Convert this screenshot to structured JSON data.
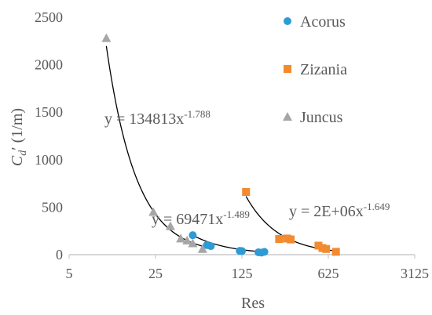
{
  "chart_data": {
    "type": "scatter",
    "title": "",
    "xlabel": "Res",
    "ylabel_main": "C",
    "ylabel_sub": "d",
    "ylabel_rest": "′ (1/m)",
    "x_scale": "log5",
    "xlim": [
      5,
      3125
    ],
    "ylim": [
      0,
      2500
    ],
    "x_ticks": [
      5,
      25,
      125,
      625,
      3125
    ],
    "x_tick_labels": [
      "5",
      "25",
      "125",
      "625",
      "3125"
    ],
    "y_ticks": [
      0,
      500,
      1000,
      1500,
      2000,
      2500
    ],
    "y_tick_labels": [
      "0",
      "500",
      "1000",
      "1500",
      "2000",
      "2500"
    ],
    "legend_position": "right",
    "series": [
      {
        "name": "Acorus",
        "marker": "circle",
        "color": "#2E9BD6",
        "x": [
          50,
          65,
          70,
          120,
          125,
          170,
          180,
          190
        ],
        "y": [
          205,
          100,
          90,
          40,
          38,
          25,
          22,
          30
        ]
      },
      {
        "name": "Zizania",
        "marker": "square",
        "color": "#F28A2F",
        "x": [
          135,
          250,
          290,
          310,
          520,
          560,
          600,
          720
        ],
        "y": [
          660,
          165,
          170,
          160,
          95,
          70,
          60,
          30
        ]
      },
      {
        "name": "Juncus",
        "marker": "triangle",
        "color": "#A6A6A6",
        "x": [
          10,
          24,
          33,
          40,
          45,
          50,
          60
        ],
        "y": [
          2280,
          450,
          300,
          170,
          150,
          120,
          60
        ]
      }
    ],
    "trendlines": [
      {
        "series": "Juncus",
        "coef": 134813,
        "exp": -1.788,
        "x_range": [
          10,
          61
        ],
        "label": "y = 134813x",
        "exp_label": "-1.788"
      },
      {
        "series": "Acorus",
        "coef": 69471,
        "exp": -1.489,
        "x_range": [
          50,
          190
        ],
        "label": "y = 69471x",
        "exp_label": "-1.489"
      },
      {
        "series": "Zizania",
        "coef": 2000000,
        "exp": -1.649,
        "x_range": [
          135,
          720
        ],
        "label": "y = 2E+06x",
        "exp_label": "-1.649"
      }
    ]
  }
}
